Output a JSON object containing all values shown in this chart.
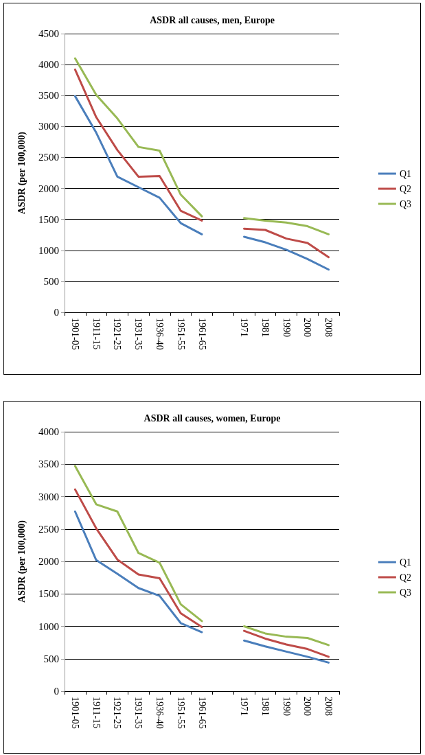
{
  "chart_data": [
    {
      "type": "line",
      "title": "ASDR all causes, men, Europe",
      "ylabel": "ASDR (per 100,000)",
      "categories": [
        "1901-05",
        "1911-15",
        "1921-25",
        "1931-35",
        "1936-40",
        "1951-55",
        "1961-65",
        null,
        "1971",
        "1981",
        "1990",
        "2000",
        "2008"
      ],
      "ylim": [
        0,
        4500
      ],
      "yticks": [
        0,
        500,
        1000,
        1500,
        2000,
        2500,
        3000,
        3500,
        4000,
        4500
      ],
      "grid": "y",
      "legend": "right",
      "marker": "none",
      "line_style": "solid",
      "series": [
        {
          "name": "Q1",
          "color": "#4a7ebb",
          "values": [
            3490,
            2900,
            2190,
            2020,
            1850,
            1440,
            1260,
            null,
            1220,
            1130,
            1010,
            860,
            690
          ]
        },
        {
          "name": "Q2",
          "color": "#be4b48",
          "values": [
            3920,
            3150,
            2620,
            2190,
            2200,
            1640,
            1480,
            null,
            1350,
            1330,
            1190,
            1120,
            890
          ]
        },
        {
          "name": "Q3",
          "color": "#98b954",
          "values": [
            4100,
            3510,
            3130,
            2670,
            2610,
            1900,
            1550,
            null,
            1520,
            1480,
            1450,
            1390,
            1260
          ]
        }
      ]
    },
    {
      "type": "line",
      "title": "ASDR all causes, women, Europe",
      "ylabel": "ASDR (per 100,000)",
      "categories": [
        "1901-05",
        "1911-15",
        "1921-25",
        "1931-35",
        "1936-40",
        "1951-55",
        "1961-65",
        null,
        "1971",
        "1981",
        "1990",
        "2000",
        "2008"
      ],
      "ylim": [
        0,
        4000
      ],
      "yticks": [
        0,
        500,
        1000,
        1500,
        2000,
        2500,
        3000,
        3500,
        4000
      ],
      "grid": "y",
      "legend": "right",
      "marker": "none",
      "line_style": "solid",
      "series": [
        {
          "name": "Q1",
          "color": "#4a7ebb",
          "values": [
            2770,
            2020,
            1810,
            1590,
            1470,
            1050,
            910,
            null,
            780,
            690,
            610,
            530,
            440
          ]
        },
        {
          "name": "Q2",
          "color": "#be4b48",
          "values": [
            3110,
            2510,
            2030,
            1800,
            1740,
            1200,
            990,
            null,
            930,
            810,
            720,
            650,
            530
          ]
        },
        {
          "name": "Q3",
          "color": "#98b954",
          "values": [
            3470,
            2880,
            2770,
            2130,
            1980,
            1340,
            1080,
            null,
            1000,
            890,
            840,
            820,
            710
          ]
        }
      ]
    }
  ]
}
